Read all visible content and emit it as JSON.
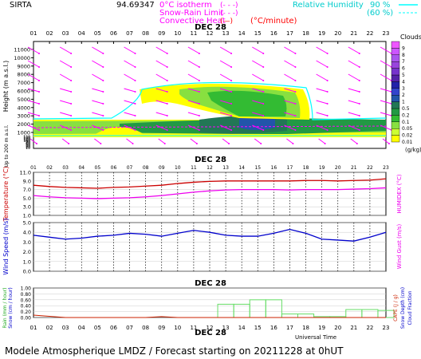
{
  "header": {
    "site": "SIRTA",
    "code": "94.69347",
    "legend_left": [
      {
        "label": "0°C isotherm",
        "style": "(- - -)",
        "color": "#ff00ff"
      },
      {
        "label": "Snow-Rain Limit",
        "style": "(- - -)",
        "color": "#ff00ff"
      },
      {
        "label": "Convective Heat",
        "style": "(—)",
        "unit": "(°C/minute)",
        "color": "#ff0000"
      }
    ],
    "legend_right": [
      {
        "label": "Relative Humidity",
        "value": "90 %",
        "color": "#00ffff"
      },
      {
        "label": "",
        "value": "(60 %)",
        "color": "#00ffff"
      }
    ]
  },
  "footer": {
    "title": "Modele Atmospherique LMDZ / Forecast starting on 20211228 at 0hUT",
    "axis_time": "Universal Time",
    "date": "DEC 28"
  },
  "hours": [
    "01",
    "02",
    "03",
    "04",
    "05",
    "06",
    "07",
    "08",
    "09",
    "10",
    "11",
    "12",
    "13",
    "14",
    "15",
    "16",
    "17",
    "18",
    "19",
    "20",
    "21",
    "22",
    "23"
  ],
  "chart_data": [
    {
      "type": "heatmap",
      "title": "Clouds",
      "date_label": "DEC 28",
      "ylabel": "Height (m a.s.l.)",
      "ylabel2": "Up to 200 m a.s.l.",
      "y_ticks_upper": [
        1000,
        2000,
        3000,
        4000,
        5000,
        6000,
        7000,
        8000,
        9000,
        10000,
        11000
      ],
      "y_ticks_lower": [
        10,
        20,
        30,
        40,
        50,
        60,
        70,
        80,
        90,
        100,
        110,
        120,
        130,
        140,
        150
      ],
      "colorbar": {
        "title": "Clouds",
        "unit": "(g/kg)",
        "levels": [
          "0.01",
          "0.02",
          "0.05",
          "0.1",
          "0.2",
          "0.5",
          "1",
          "2",
          "3",
          "4",
          "5",
          "6",
          "7",
          "8",
          "9"
        ],
        "colors": [
          "#ffff00",
          "#ccff33",
          "#88e040",
          "#33bb33",
          "#229944",
          "#227755",
          "#2255aa",
          "#3344cc",
          "#2222aa",
          "#5522aa",
          "#7733cc",
          "#9944dd",
          "#aa55ee",
          "#cc55ff",
          "#ee55ff"
        ]
      },
      "wind": "wind barbs (magenta arrows)"
    },
    {
      "type": "line",
      "date_label": "DEC 28",
      "ylabel": "Temperature (°C)",
      "ylabel_right": "HUMIDEX (°C)",
      "ylim": [
        1.0,
        11.0
      ],
      "y_ticks": [
        1.0,
        3.0,
        5.0,
        7.0,
        9.0,
        11.0
      ],
      "series": [
        {
          "name": "Temperature",
          "color": "#cc0000",
          "values": [
            8.0,
            7.7,
            7.5,
            7.4,
            7.3,
            7.5,
            7.6,
            7.8,
            8.0,
            8.4,
            8.7,
            8.9,
            9.0,
            9.0,
            9.0,
            9.0,
            9.0,
            9.1,
            9.1,
            9.0,
            9.1,
            9.2,
            9.5
          ]
        },
        {
          "name": "HUMIDEX",
          "color": "#ee00ee",
          "values": [
            5.6,
            5.3,
            5.1,
            5.0,
            4.9,
            5.0,
            5.1,
            5.3,
            5.6,
            6.0,
            6.4,
            6.7,
            6.9,
            7.0,
            7.0,
            7.0,
            6.9,
            7.0,
            7.0,
            7.0,
            7.1,
            7.2,
            7.4
          ]
        }
      ]
    },
    {
      "type": "line",
      "ylabel": "Wind Speed (m/s)",
      "ylabel_right": "Wind Gust (m/s)",
      "ylim": [
        0.0,
        5.0
      ],
      "y_ticks": [
        0.0,
        1.0,
        2.0,
        3.0,
        4.0,
        5.0
      ],
      "series": [
        {
          "name": "Wind Speed",
          "color": "#0000cc",
          "values": [
            3.7,
            3.5,
            3.3,
            3.4,
            3.6,
            3.7,
            3.9,
            3.8,
            3.6,
            3.9,
            4.2,
            4.0,
            3.7,
            3.6,
            3.6,
            3.9,
            4.3,
            3.9,
            3.3,
            3.2,
            3.1,
            3.5,
            4.0
          ]
        }
      ]
    },
    {
      "type": "bar",
      "date_label": "DEC 28",
      "ylabel": "Rain (mm / hour)",
      "ylabel2": "Snow (cm / hour)",
      "ylabel_right": "CAPE (J / g)",
      "ylabel_right2": "Snow Depth (cm)",
      "ylabel_right3": "Cloud Fraction",
      "ylim": [
        0.0,
        1.0
      ],
      "y_ticks": [
        0.0,
        0.2,
        0.4,
        0.6,
        0.8,
        1.0
      ],
      "series": [
        {
          "name": "Rain",
          "color": "#66dd66",
          "values": [
            0.0,
            0.0,
            0.0,
            0.0,
            0.0,
            0.0,
            0.0,
            0.0,
            0.0,
            0.0,
            0.0,
            0.0,
            0.45,
            0.45,
            0.6,
            0.6,
            0.12,
            0.12,
            0.03,
            0.03,
            0.27,
            0.27,
            0.24
          ]
        },
        {
          "name": "CAPE",
          "color": "#cc2200",
          "values": [
            0.08,
            0.04,
            0.0,
            0.0,
            0.0,
            0.0,
            0.0,
            0.0,
            0.03,
            0.0,
            0.0,
            0.0,
            0.0,
            0.0,
            0.0,
            0.0,
            0.0,
            0.0,
            0.0,
            0.0,
            0.0,
            0.0,
            0.0
          ]
        }
      ]
    }
  ]
}
